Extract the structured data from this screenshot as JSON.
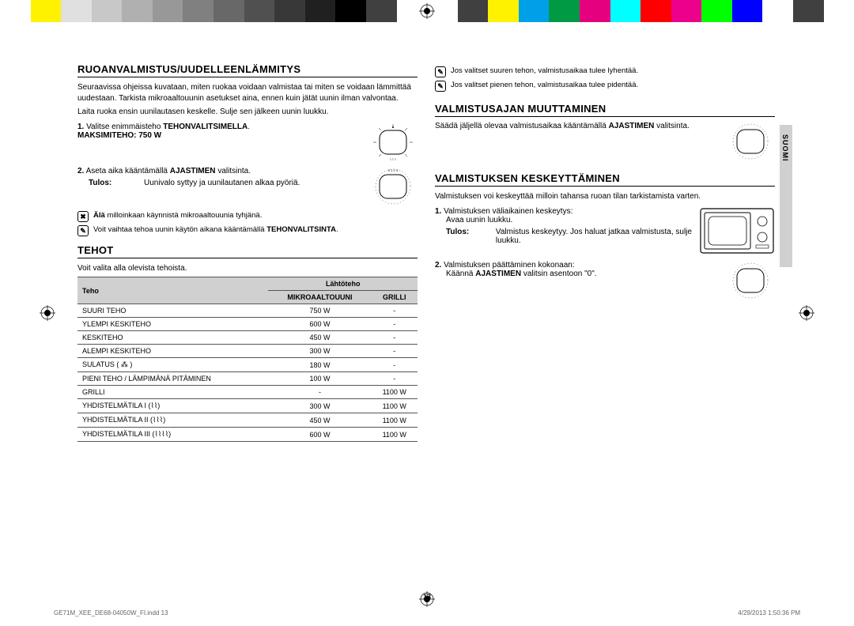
{
  "colorBar": [
    "#ffffff",
    "#fef200",
    "#e0e0e0",
    "#c8c8c8",
    "#b0b0b0",
    "#989898",
    "#808080",
    "#686868",
    "#505050",
    "#383838",
    "#202020",
    "#000000",
    "#404040",
    "#ffffff",
    "#ffffff",
    "#404040",
    "#fef200",
    "#00a0e9",
    "#009944",
    "#e5007f",
    "#00ffff",
    "#ff0000",
    "#ec008c",
    "#00ff00",
    "#0000ff",
    "#ffffff",
    "#404040",
    "#ffffff"
  ],
  "sideTab": "SUOMI",
  "pageNumber": "13",
  "footer": {
    "left": "GE71M_XEE_DE68-04050W_FI.indd   13",
    "right": "4/29/2013   1:50:36 PM"
  },
  "left": {
    "h1": "RUOANVALMISTUS/UUDELLEENLÄMMITYS",
    "intro1": "Seuraavissa ohjeissa kuvataan, miten ruokaa voidaan valmistaa tai miten se voidaan lämmittää uudestaan. Tarkista mikroaaltouunin asetukset aina, ennen kuin jätät uunin ilman valvontaa.",
    "intro2": "Laita ruoka ensin uunilautasen keskelle. Sulje sen jälkeen uunin luukku.",
    "step1_num": "1.",
    "step1": "Valitse enimmäisteho ",
    "step1b": "TEHONVALITSIMELLA",
    "step1c": ".",
    "step1_max": "MAKSIMITEHO: 750 W",
    "step2_num": "2.",
    "step2a": "Aseta aika kääntämällä ",
    "step2b": "AJASTIMEN",
    "step2c": " valitsinta.",
    "result_label": "Tulos:",
    "result_text": "Uunivalo syttyy ja uunilautanen alkaa pyöriä.",
    "warn1_icon": "✖",
    "warn1a": "Älä",
    "warn1b": " milloinkaan käynnistä mikroaaltouunia tyhjänä.",
    "warn2_icon": "✎",
    "warn2a": "Voit vaihtaa tehoa uunin käytön aikana kääntämällä ",
    "warn2b": "TEHONVALITSINTA",
    "warn2c": ".",
    "h2": "TEHOT",
    "tehot_intro": "Voit valita alla olevista tehoista.",
    "table": {
      "head_teho": "Teho",
      "head_lahto": "Lähtöteho",
      "head_micro": "MIKROAALTOUUNI",
      "head_grill": "GRILLI",
      "rows": [
        [
          "SUURI TEHO",
          "750 W",
          "-"
        ],
        [
          "YLEMPI KESKITEHO",
          "600 W",
          "-"
        ],
        [
          "KESKITEHO",
          "450 W",
          "-"
        ],
        [
          "ALEMPI KESKITEHO",
          "300 W",
          "-"
        ],
        [
          "SULATUS ( ⁂ )",
          "180 W",
          "-"
        ],
        [
          "PIENI TEHO / LÄMPIMÄNÄ PITÄMINEN",
          "100 W",
          "-"
        ],
        [
          "GRILLI",
          "-",
          "1100 W"
        ],
        [
          "YHDISTELMÄTILA I (⌇⌇)",
          "300 W",
          "1100 W"
        ],
        [
          "YHDISTELMÄTILA II (⌇⌇⌇)",
          "450 W",
          "1100 W"
        ],
        [
          "YHDISTELMÄTILA III (⌇⌇⌇⌇)",
          "600 W",
          "1100 W"
        ]
      ]
    }
  },
  "right": {
    "note1_icon": "✎",
    "note1": "Jos valitset suuren tehon, valmistusaikaa tulee lyhentää.",
    "note2_icon": "✎",
    "note2": "Jos valitset pienen tehon, valmistusaikaa tulee pidentää.",
    "h1": "VALMISTUSAJAN MUUTTAMINEN",
    "p1a": "Säädä jäljellä olevaa valmistusaikaa kääntämällä ",
    "p1b": "AJASTIMEN",
    "p1c": " valitsinta.",
    "h2": "VALMISTUKSEN KESKEYTTÄMINEN",
    "p2": "Valmistuksen voi keskeyttää milloin tahansa ruoan tilan tarkistamista varten.",
    "s1_num": "1.",
    "s1a": "Valmistuksen väliaikainen keskeytys:",
    "s1b": "Avaa uunin luukku.",
    "result_label": "Tulos:",
    "result_text": "Valmistus keskeytyy. Jos haluat jatkaa valmistusta, sulje luukku.",
    "s2_num": "2.",
    "s2a": "Valmistuksen päättäminen kokonaan:",
    "s2b1": "Käännä ",
    "s2b2": "AJASTIMEN",
    "s2b3": " valitsin asentoon \"0\"."
  }
}
